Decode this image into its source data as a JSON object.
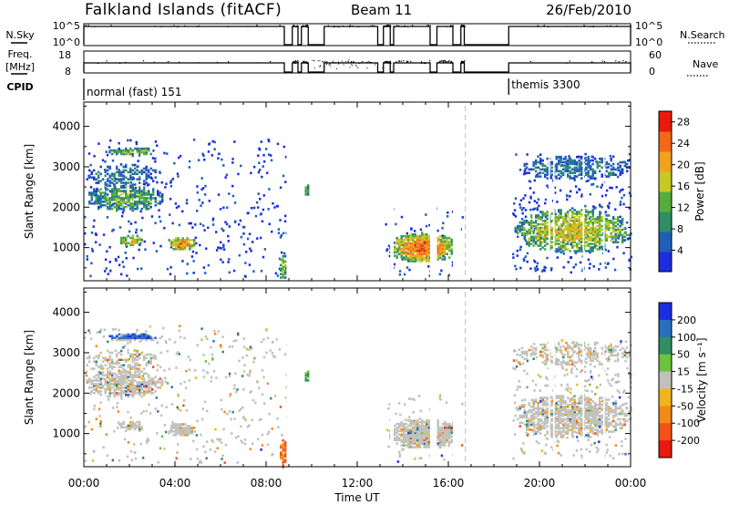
{
  "header": {
    "title": "Falkland Islands (fitACF)",
    "beam": "Beam 11",
    "date": "26/Feb/2010"
  },
  "strips": {
    "nsky_label": "N.Sky",
    "nsearch_label": "N.Search",
    "nsky_ticks": [
      "10^5",
      "10^0"
    ],
    "nsearch_ticks": [
      "10^5",
      "10^0"
    ],
    "freq_label": "Freq.",
    "freq_unit": "[MHz]",
    "freq_ticks": [
      "18",
      "8"
    ],
    "nave_label": "Nave",
    "nave_ticks": [
      "60",
      "0"
    ],
    "cpid_label": "CPID",
    "cpid_modes": [
      "normal (fast) 151",
      "themis 3300"
    ],
    "cpid_switch_hours": [
      0,
      18.65
    ]
  },
  "chart_data": [
    {
      "type": "heatmap",
      "name": "power",
      "ylabel": "Slant Range [km]",
      "xlabel": "",
      "xlim": [
        0,
        24
      ],
      "ylim": [
        180,
        4600
      ],
      "y_ticks": [
        "1000",
        "2000",
        "3000",
        "4000"
      ],
      "colorbar_label": "Power [dB]",
      "colorbar_ticks": [
        "4",
        "8",
        "12",
        "16",
        "20",
        "24",
        "28"
      ],
      "colorbar_range": [
        0,
        30
      ],
      "colors": [
        "#1c2ce0",
        "#1f5fb8",
        "#2f8e64",
        "#55ad3c",
        "#c8c822",
        "#f2a21d",
        "#f26818",
        "#e81a0e"
      ],
      "echo_regions_hours_km": [
        {
          "t": [
            0.0,
            3.5
          ],
          "r": [
            1900,
            2600
          ],
          "level": 12
        },
        {
          "t": [
            1.0,
            3.2
          ],
          "r": [
            3300,
            3500
          ],
          "level": 14
        },
        {
          "t": [
            1.5,
            2.6
          ],
          "r": [
            1050,
            1350
          ],
          "level": 18
        },
        {
          "t": [
            3.6,
            4.9
          ],
          "r": [
            950,
            1300
          ],
          "level": 22
        },
        {
          "t": [
            13.3,
            16.4
          ],
          "r": [
            650,
            1400
          ],
          "level": 24
        },
        {
          "t": [
            18.8,
            24.0
          ],
          "r": [
            900,
            2000
          ],
          "level": 18
        }
      ]
    },
    {
      "type": "heatmap",
      "name": "velocity",
      "ylabel": "Slant Range [km]",
      "xlabel": "Time UT",
      "xlim": [
        0,
        24
      ],
      "ylim": [
        180,
        4600
      ],
      "x_ticks": [
        "00:00",
        "04:00",
        "08:00",
        "12:00",
        "16:00",
        "20:00",
        "00:00"
      ],
      "y_ticks": [
        "1000",
        "2000",
        "3000",
        "4000"
      ],
      "colorbar_label": "Velocity [m s⁻¹]",
      "colorbar_ticks": [
        "200",
        "100",
        "50",
        "15",
        "-15",
        "-50",
        "-100",
        "-200"
      ],
      "colors": [
        "#1c2ce0",
        "#2a6ec0",
        "#2f8e64",
        "#6cc23c",
        "#c0c0bc",
        "#f2b41d",
        "#f28a18",
        "#f25218",
        "#e81a0e"
      ]
    }
  ]
}
